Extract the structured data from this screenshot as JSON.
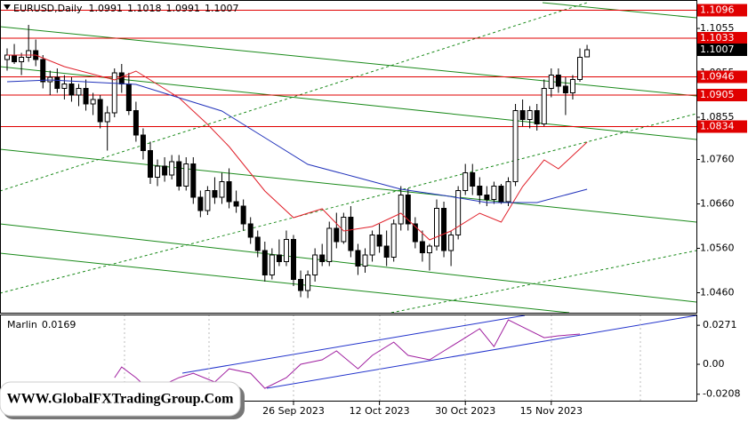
{
  "chart_data": [
    {
      "type": "candlestick",
      "title": "EURUSD,Daily",
      "categories": [
        null,
        null,
        null,
        null,
        null,
        null,
        null,
        null,
        null,
        null,
        null,
        null,
        null,
        null,
        null,
        null,
        null,
        null,
        null,
        null,
        null,
        null,
        null,
        null,
        null,
        null,
        null,
        null,
        null,
        null,
        null,
        null,
        null,
        null,
        null,
        null,
        null,
        null,
        null,
        null,
        "26 Sep 2023",
        null,
        null,
        null,
        null,
        null,
        null,
        null,
        null,
        null,
        null,
        null,
        "12 Oct 2023",
        null,
        null,
        null,
        null,
        null,
        null,
        null,
        null,
        null,
        null,
        null,
        "30 Oct 2023",
        null,
        null,
        null,
        null,
        null,
        null,
        null,
        null,
        null,
        null,
        null,
        "15 Nov 2023",
        null,
        null,
        null,
        null,
        null
      ],
      "open": [
        1.0985,
        1.0995,
        1.098,
        1.099,
        1.1005,
        1.0985,
        1.0935,
        1.0945,
        1.092,
        1.093,
        1.0905,
        1.092,
        1.0885,
        1.0895,
        1.0845,
        1.0865,
        1.0955,
        1.093,
        1.087,
        1.0815,
        1.078,
        1.072,
        1.0745,
        1.0725,
        1.0755,
        1.07,
        1.075,
        1.0675,
        1.0645,
        1.069,
        1.0675,
        1.071,
        1.0665,
        1.0655,
        1.0615,
        1.0585,
        1.0555,
        1.05,
        1.0545,
        1.053,
        1.058,
        1.049,
        1.0465,
        1.05,
        1.0545,
        1.053,
        1.0605,
        1.0575,
        1.063,
        1.0555,
        1.052,
        1.0545,
        1.059,
        1.0565,
        1.054,
        1.0615,
        1.068,
        1.0615,
        1.0575,
        1.055,
        1.0565,
        1.065,
        1.0555,
        1.059,
        1.069,
        1.073,
        1.07,
        1.068,
        1.067,
        1.07,
        1.0665,
        1.071,
        1.087,
        1.085,
        1.087,
        1.084,
        1.092,
        1.095,
        1.0925,
        1.091,
        1.094,
        1.0991
      ],
      "high": [
        1.101,
        1.102,
        1.1,
        1.1063,
        1.103,
        1.0995,
        1.096,
        1.0965,
        1.095,
        1.0945,
        1.093,
        1.094,
        1.091,
        1.0905,
        1.088,
        1.0965,
        1.0975,
        1.0955,
        1.089,
        1.083,
        1.08,
        1.076,
        1.0765,
        1.077,
        1.077,
        1.0765,
        1.0765,
        1.069,
        1.07,
        1.072,
        1.073,
        1.074,
        1.069,
        1.067,
        1.063,
        1.06,
        1.0575,
        1.056,
        1.058,
        1.06,
        1.059,
        1.051,
        1.051,
        1.056,
        1.057,
        1.062,
        1.064,
        1.064,
        1.0655,
        1.057,
        1.056,
        1.06,
        1.0615,
        1.06,
        1.0625,
        1.07,
        1.0695,
        1.063,
        1.06,
        1.057,
        1.067,
        1.0665,
        1.06,
        1.07,
        1.075,
        1.075,
        1.072,
        1.07,
        1.071,
        1.0705,
        1.072,
        1.0885,
        1.0895,
        1.088,
        1.0885,
        1.094,
        1.0965,
        1.0965,
        1.0945,
        1.095,
        1.101,
        1.1018
      ],
      "low": [
        1.096,
        1.0975,
        1.095,
        1.098,
        1.097,
        1.092,
        1.0905,
        1.091,
        1.0895,
        1.089,
        1.088,
        1.087,
        1.086,
        1.083,
        1.078,
        1.0855,
        1.091,
        1.086,
        1.08,
        1.076,
        1.0705,
        1.07,
        1.071,
        1.0715,
        1.069,
        1.069,
        1.066,
        1.063,
        1.0635,
        1.066,
        1.066,
        1.065,
        1.064,
        1.06,
        1.057,
        1.054,
        1.0485,
        1.049,
        1.052,
        1.052,
        1.0475,
        1.045,
        1.0448,
        1.0485,
        1.052,
        1.052,
        1.056,
        1.057,
        1.054,
        1.05,
        1.0505,
        1.053,
        1.055,
        1.052,
        1.053,
        1.06,
        1.06,
        1.056,
        1.053,
        1.051,
        1.0555,
        1.054,
        1.052,
        1.058,
        1.068,
        1.068,
        1.066,
        1.0655,
        1.066,
        1.066,
        1.0655,
        1.07,
        1.0835,
        1.083,
        1.0825,
        1.0835,
        1.09,
        1.091,
        1.086,
        1.0895,
        1.0935,
        1.0991
      ],
      "close": [
        1.0995,
        1.098,
        1.099,
        1.1005,
        1.0985,
        1.0935,
        1.0945,
        1.092,
        1.093,
        1.0905,
        1.092,
        1.0885,
        1.0895,
        1.0845,
        1.0865,
        1.0955,
        1.093,
        1.087,
        1.0815,
        1.078,
        1.072,
        1.0745,
        1.0725,
        1.0755,
        1.07,
        1.075,
        1.0675,
        1.0645,
        1.069,
        1.0675,
        1.071,
        1.0665,
        1.0655,
        1.0615,
        1.0585,
        1.0555,
        1.05,
        1.0545,
        1.053,
        1.058,
        1.049,
        1.0465,
        1.05,
        1.0545,
        1.053,
        1.0605,
        1.0575,
        1.063,
        1.0555,
        1.052,
        1.0545,
        1.059,
        1.0565,
        1.054,
        1.0615,
        1.068,
        1.0615,
        1.0575,
        1.055,
        1.0565,
        1.065,
        1.0555,
        1.059,
        1.069,
        1.073,
        1.07,
        1.068,
        1.067,
        1.07,
        1.0665,
        1.071,
        1.087,
        1.085,
        1.087,
        1.084,
        1.092,
        1.095,
        1.0925,
        1.091,
        1.094,
        1.099,
        1.1007
      ],
      "series": [
        {
          "color": "#e0202a",
          "x": [
            0,
            4,
            8,
            15,
            18,
            24,
            28,
            31,
            36,
            40,
            44,
            47,
            51,
            55,
            59,
            62,
            66,
            69,
            72,
            75,
            77,
            81
          ],
          "values": [
            1.0995,
            1.0995,
            1.0969,
            1.0939,
            1.0959,
            1.0899,
            1.0839,
            1.0789,
            1.0689,
            1.0629,
            1.0649,
            1.0599,
            1.0609,
            1.0639,
            1.0579,
            1.0599,
            1.0639,
            1.0619,
            1.0699,
            1.0759,
            1.0739,
            1.0799
          ]
        },
        {
          "color": "#2233bb",
          "x": [
            0,
            6,
            18,
            24,
            30,
            36,
            42,
            49,
            55,
            61,
            67,
            74,
            81
          ],
          "values": [
            1.0935,
            1.0939,
            1.0929,
            1.0899,
            1.0869,
            1.0809,
            1.0749,
            1.0719,
            1.0693,
            1.0679,
            1.0663,
            1.0663,
            1.0693
          ]
        }
      ],
      "levels": [
        1.1096,
        1.1033,
        1.0946,
        1.0905,
        1.0834
      ],
      "level_color": "#e00000",
      "last_price": 1.1007,
      "ylim": [
        1.0415,
        1.1119
      ],
      "yticks": [
        1.1055,
        1.0955,
        1.0855,
        {
          "value": 1.076,
          "label": "1.0760"
        },
        {
          "value": 1.066,
          "label": "1.0660"
        },
        {
          "value": 1.056,
          "label": "1.0560"
        },
        {
          "value": 1.046,
          "label": "1.0460"
        }
      ]
    },
    {
      "type": "line",
      "name": "Marlin",
      "value": 0.0169,
      "color": "#a020a0",
      "x": [
        15,
        16,
        18,
        20,
        24,
        26,
        29,
        31,
        34,
        36,
        39,
        41,
        44,
        46,
        49,
        51,
        54,
        56,
        59,
        61,
        64,
        66,
        68,
        70,
        72,
        75,
        77,
        80
      ],
      "values": [
        -0.0093,
        -0.0019,
        -0.0093,
        -0.0185,
        -0.0093,
        -0.0062,
        -0.0123,
        -0.0031,
        -0.0062,
        -0.0167,
        -0.0093,
        0,
        0.0031,
        0.0093,
        -0.0031,
        0.0062,
        0.0154,
        0.0062,
        0.0031,
        0.0093,
        0.0185,
        0.0247,
        0.0123,
        0.0309,
        0.0259,
        0.0185,
        0.0198,
        0.021
      ],
      "ylim": [
        -0.0259,
        0.0346
      ],
      "yticks": [
        0.0271,
        {
          "value": 0,
          "label": "0.00"
        },
        -0.0208
      ]
    }
  ],
  "watermark": "WWW.GlobalFXTradingGroup.Com"
}
